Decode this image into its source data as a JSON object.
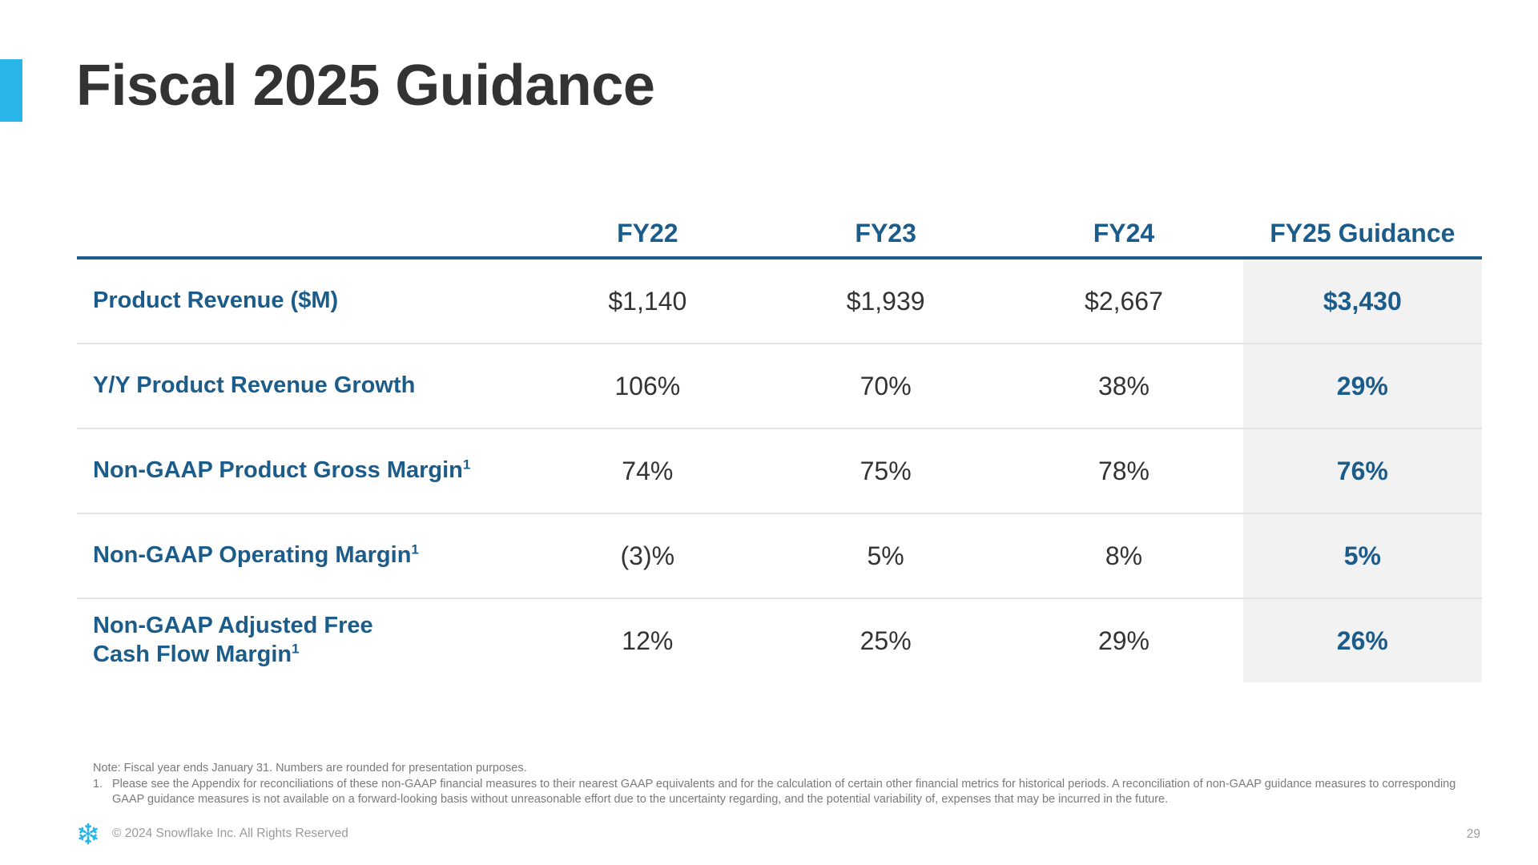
{
  "slide": {
    "title": "Fiscal 2025 Guidance",
    "accent_color": "#29b5e8",
    "brand_color": "#1b5c8a",
    "highlight_background": "#f2f2f2"
  },
  "table": {
    "columns": [
      "FY22",
      "FY23",
      "FY24",
      "FY25 Guidance"
    ],
    "rows": [
      {
        "label": "Product Revenue ($M)",
        "footnote": "",
        "values": [
          "$1,140",
          "$1,939",
          "$2,667",
          "$3,430"
        ]
      },
      {
        "label": "Y/Y Product Revenue Growth",
        "footnote": "",
        "values": [
          "106%",
          "70%",
          "38%",
          "29%"
        ]
      },
      {
        "label": "Non-GAAP Product Gross Margin",
        "footnote": "1",
        "values": [
          "74%",
          "75%",
          "78%",
          "76%"
        ]
      },
      {
        "label": "Non-GAAP Operating Margin",
        "footnote": "1",
        "values": [
          "(3)%",
          "5%",
          "8%",
          "5%"
        ]
      },
      {
        "label_line1": "Non-GAAP Adjusted Free",
        "label_line2": "Cash Flow Margin",
        "footnote": "1",
        "values": [
          "12%",
          "25%",
          "29%",
          "26%"
        ]
      }
    ]
  },
  "notes": {
    "note": "Note: Fiscal year ends January 31. Numbers are rounded for presentation purposes.",
    "footnote_number": "1.",
    "footnote_text": "Please see the Appendix for reconciliations of these non-GAAP financial measures to their nearest GAAP equivalents and for the calculation of certain other financial metrics for historical periods. A reconciliation of non-GAAP guidance measures to corresponding GAAP guidance measures is not available on a forward-looking basis without unreasonable effort due to the uncertainty regarding, and the potential variability of, expenses that may be incurred in the future."
  },
  "footer": {
    "logo_icon": "snowflake-logo-icon",
    "copyright": "© 2024 Snowflake Inc. All Rights Reserved",
    "page_number": "29"
  }
}
